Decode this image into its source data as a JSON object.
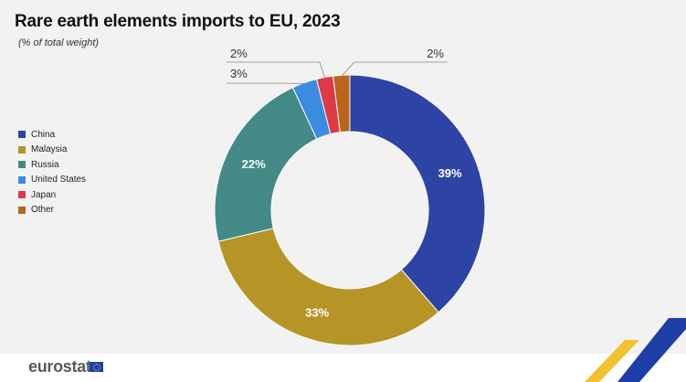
{
  "header": {
    "title": "Rare earth elements imports to EU, 2023",
    "subtitle": "(% of total weight)"
  },
  "legend_items": [
    "China",
    "Malaysia",
    "Russia",
    "United States",
    "Japan",
    "Other"
  ],
  "branding": {
    "logo_text": "eurostat",
    "flag_icon": "eu-flag-icon"
  },
  "colors": {
    "China": "#2e44a5",
    "Malaysia": "#b69426",
    "Russia": "#438a86",
    "United States": "#3b8be0",
    "Japan": "#dd3a45",
    "Other": "#b9651c",
    "background": "#f2f2f2"
  },
  "chart_data": {
    "type": "pie",
    "donut": true,
    "title": "Rare earth elements imports to EU, 2023",
    "subtitle": "(% of total weight)",
    "unit": "%",
    "categories": [
      "China",
      "Malaysia",
      "Russia",
      "United States",
      "Japan",
      "Other"
    ],
    "values": [
      39,
      33,
      22,
      3,
      2,
      2
    ],
    "data_labels": [
      "39%",
      "33%",
      "22%",
      "3%",
      "2%",
      "2%"
    ],
    "legend_position": "left"
  }
}
